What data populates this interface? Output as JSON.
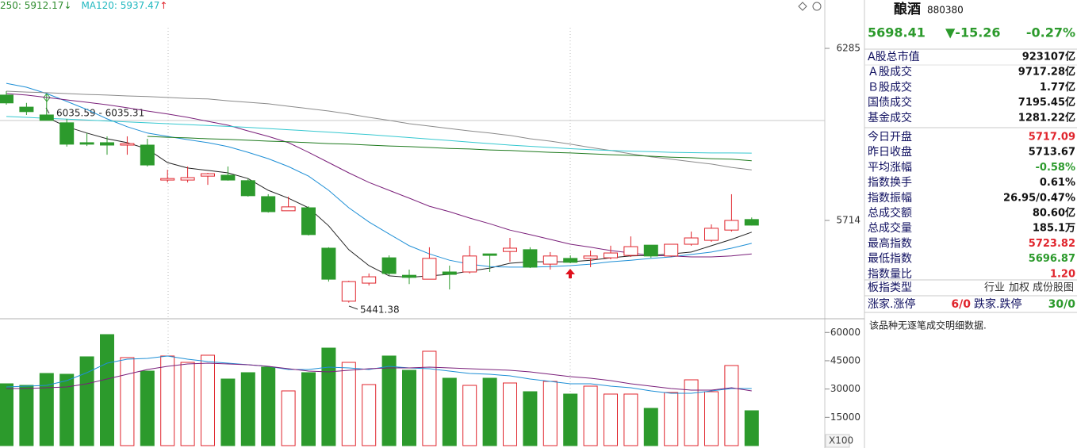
{
  "chart_data": [
    {
      "type": "candlestick",
      "ylim": [
        5393,
        6406
      ],
      "yticks": [
        6285,
        5714
      ],
      "up_color": "#e0242c",
      "down_color": "#2c9a2c",
      "open": [
        6130,
        6090,
        6064,
        6038,
        5972,
        5972,
        5964,
        5964,
        5848,
        5848,
        5861,
        5864,
        5846,
        5793,
        5746,
        5756,
        5622,
        5446,
        5506,
        5590,
        5532,
        5519,
        5543,
        5543,
        5603,
        5611,
        5617,
        5569,
        5588,
        5588,
        5590,
        5598,
        5632,
        5596,
        5635,
        5648,
        5682,
        5717.09
      ],
      "high": [
        6143,
        6104,
        6135,
        6051,
        6004,
        5993,
        5993,
        5985,
        5882,
        5893,
        5872,
        5893,
        5853,
        5801,
        5793,
        5761,
        5625,
        5514,
        5538,
        5598,
        5551,
        5625,
        5564,
        5630,
        5603,
        5656,
        5625,
        5609,
        5598,
        5614,
        5630,
        5661,
        5632,
        5635,
        5677,
        5701,
        5801,
        5723.82
      ],
      "low": [
        6098,
        6064,
        6046,
        5959,
        5961,
        5932,
        5932,
        5893,
        5840,
        5840,
        5832,
        5846,
        5793,
        5740,
        5746,
        5664,
        5511,
        5441.38,
        5498,
        5532,
        5503,
        5519,
        5485,
        5538,
        5543,
        5577,
        5556,
        5551,
        5572,
        5559,
        5585,
        5593,
        5590,
        5593,
        5630,
        5643,
        5677,
        5696.87
      ],
      "close": [
        6104,
        6075,
        6046,
        5967,
        5967,
        5964,
        5969,
        5898,
        5853,
        5856,
        5869,
        5848,
        5796,
        5743,
        5759,
        5667,
        5519,
        5511,
        5527,
        5538,
        5525,
        5588,
        5535,
        5596,
        5598,
        5622,
        5559,
        5596,
        5575,
        5596,
        5606,
        5627,
        5596,
        5635,
        5656,
        5688,
        5714,
        5698.41
      ],
      "lines": [
        {
          "color": "#222222",
          "values": [
            null,
            null,
            6056,
            6025,
            6004,
            5985,
            5972,
            5951,
            5906,
            5888,
            5880,
            5872,
            5853,
            5814,
            5788,
            5756,
            5696,
            5617,
            5564,
            5530,
            5525,
            5530,
            5535,
            5546,
            5556,
            5572,
            5577,
            5577,
            5577,
            5582,
            5590,
            5596,
            5598,
            5603,
            5609,
            5630,
            5651,
            5675
          ]
        },
        {
          "color": "#1e8fd6",
          "values": [
            6169,
            6156,
            6135,
            6109,
            6082,
            6051,
            6025,
            6004,
            5993,
            5982,
            5972,
            5959,
            5940,
            5919,
            5893,
            5861,
            5814,
            5756,
            5709,
            5669,
            5630,
            5603,
            5582,
            5569,
            5561,
            5559,
            5559,
            5561,
            5564,
            5569,
            5577,
            5582,
            5588,
            5593,
            5601,
            5609,
            5622,
            5638
          ]
        },
        {
          "color": "#7a1f7a",
          "values": [
            6135,
            6130,
            6122,
            6114,
            6106,
            6098,
            6088,
            6077,
            6067,
            6056,
            6043,
            6030,
            6011,
            5993,
            5972,
            5940,
            5906,
            5872,
            5840,
            5814,
            5788,
            5761,
            5743,
            5722,
            5703,
            5682,
            5667,
            5651,
            5635,
            5625,
            5614,
            5606,
            5598,
            5596,
            5593,
            5593,
            5596,
            5603
          ]
        },
        {
          "color": "#8a8a8a",
          "values": [
            6143,
            6140,
            6138,
            6135,
            6132,
            6130,
            6127,
            6125,
            6122,
            6119,
            6117,
            6111,
            6106,
            6101,
            6093,
            6085,
            6077,
            6067,
            6056,
            6046,
            6035,
            6027,
            6019,
            6011,
            6004,
            5996,
            5985,
            5977,
            5967,
            5956,
            5946,
            5935,
            5925,
            5917,
            5909,
            5901,
            5890,
            5882
          ]
        },
        {
          "color": "#35c8d0",
          "values": [
            6059,
            6056,
            6053,
            6050,
            6047,
            6044,
            6041,
            6038,
            6035,
            6032,
            6029,
            6026,
            6023,
            6019,
            6015,
            6011,
            6007,
            6003,
            5999,
            5994,
            5989,
            5984,
            5979,
            5974,
            5969,
            5964,
            5960,
            5956,
            5952,
            5949,
            5946,
            5944,
            5942,
            5940,
            5939,
            5938,
            5938,
            5937.47
          ]
        },
        {
          "color": "#1e7a1e",
          "values": [
            null,
            null,
            null,
            null,
            null,
            null,
            null,
            5993,
            5990,
            5988,
            5985,
            5983,
            5980,
            5977,
            5975,
            5972,
            5969,
            5967,
            5964,
            5961,
            5959,
            5956,
            5953,
            5951,
            5948,
            5946,
            5943,
            5940,
            5938,
            5935,
            5932,
            5930,
            5927,
            5924,
            5922,
            5919,
            5917,
            5912.17
          ]
        }
      ],
      "ma_legend": [
        {
          "label": "250: ",
          "value": 5912.17,
          "arrow": "↓",
          "color": "#2e8b2e",
          "arrow_color": "#2e8b2e"
        },
        {
          "label": "MA120: ",
          "value": 5937.47,
          "arrow": "↑",
          "color": "#20b8c0",
          "arrow_color": "#e0242c"
        }
      ],
      "annotations": [
        "6035.59 - 6035.31",
        "5441.38"
      ]
    },
    {
      "type": "bar",
      "ylim": [
        0,
        66000
      ],
      "yticks": [
        60000,
        45000,
        30000,
        15000
      ],
      "unit_label": "X100",
      "values": [
        32790,
        31950,
        38260,
        37840,
        47090,
        58860,
        46660,
        39520,
        47510,
        44140,
        47930,
        35310,
        38680,
        41620,
        29010,
        38680,
        51710,
        44140,
        32370,
        47510,
        39940,
        50030,
        35730,
        31950,
        35730,
        33210,
        28590,
        34050,
        27330,
        31530,
        27330,
        27330,
        19760,
        28170,
        34890,
        28590,
        42460,
        18500
      ],
      "lines": [
        {
          "color": "#1e8fd6",
          "values": [
            31110,
            31530,
            31950,
            34470,
            38680,
            43720,
            45820,
            46240,
            47510,
            45820,
            44560,
            43720,
            42880,
            42040,
            40360,
            40360,
            41620,
            41200,
            40360,
            42040,
            41200,
            40780,
            39520,
            38260,
            37840,
            36990,
            35310,
            34050,
            32790,
            32790,
            31530,
            30690,
            29010,
            27750,
            27750,
            29010,
            30270,
            30270
          ]
        },
        {
          "color": "#7a1f7a",
          "values": [
            30270,
            30270,
            30690,
            31110,
            32790,
            35310,
            37840,
            40360,
            42040,
            43300,
            43720,
            43300,
            42880,
            42040,
            40780,
            39520,
            39100,
            39940,
            40780,
            41200,
            41200,
            41620,
            41200,
            40780,
            40360,
            39940,
            39100,
            37840,
            36570,
            35730,
            34470,
            32790,
            31530,
            30270,
            29430,
            29430,
            30690,
            29010
          ]
        }
      ]
    }
  ],
  "info_panel": {
    "name": "酿酒",
    "code": "880380",
    "price": "5698.41",
    "change": "▼-15.26",
    "change_pct": "-0.27%",
    "price_color": "#2c9a2c",
    "rows": [
      {
        "label": "A股总市值",
        "value": "923107亿"
      },
      {
        "label": "Ａ股成交",
        "value": "9717.28亿"
      },
      {
        "label": "Ｂ股成交",
        "value": "1.77亿"
      },
      {
        "label": "国债成交",
        "value": "7195.45亿"
      },
      {
        "label": "基金成交",
        "value": "1281.22亿"
      },
      {
        "label": "今日开盘",
        "value": "5717.09",
        "color": "#e0242c"
      },
      {
        "label": "昨日收盘",
        "value": "5713.67"
      },
      {
        "label": "平均涨幅",
        "value": "-0.58%",
        "color": "#2c9a2c"
      },
      {
        "label": "指数换手",
        "value": "0.61%"
      },
      {
        "label": "指数振幅",
        "value": "26.95/0.47%"
      },
      {
        "label": "总成交额",
        "value": "80.60亿"
      },
      {
        "label": "总成交量",
        "value": "185.1万"
      },
      {
        "label": "最高指数",
        "value": "5723.82",
        "color": "#e0242c"
      },
      {
        "label": "最低指数",
        "value": "5696.87",
        "color": "#2c9a2c"
      },
      {
        "label": "指数量比",
        "value": "1.20",
        "color": "#e0242c"
      }
    ],
    "sector_type": {
      "label": "板指类型",
      "options": [
        "行业",
        "加权",
        "成份股图"
      ]
    },
    "limits": {
      "up_label": "涨家.涨停",
      "up_value": "6/0",
      "up_color": "#e0242c",
      "down_label": "跌家.跌停",
      "down_value": "30/0",
      "down_color": "#2c9a2c"
    },
    "note": "该品种无逐笔成交明细数据."
  }
}
